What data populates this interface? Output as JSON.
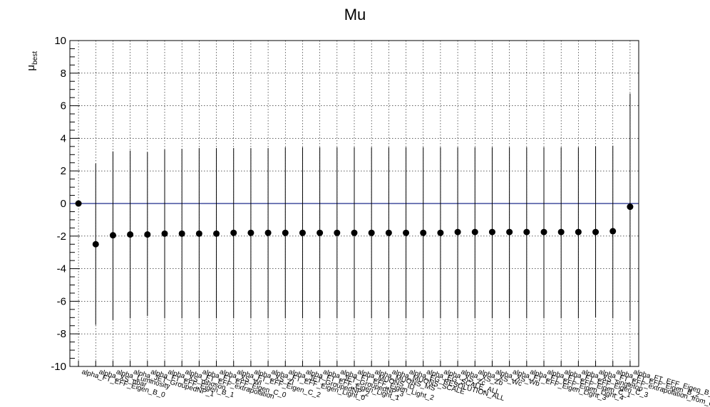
{
  "chart_data": {
    "type": "scatter",
    "title": "Mu",
    "ylabel_main": "μ",
    "ylabel_sub": "best",
    "xlabel": "",
    "ylim": [
      -10,
      10
    ],
    "yticks": [
      -10,
      -8,
      -6,
      -4,
      -2,
      0,
      2,
      4,
      6,
      8,
      10
    ],
    "grid": true,
    "reference_line": 0,
    "series": [
      {
        "marker": "filled-circle",
        "categories": [
          "alpha_FT_EFF_Eigen_B_0",
          "alpha_XS_ttbar",
          "alpha_Luminosity",
          "alpha_JET_GroupedNP_1",
          "alpha_FT_EFF_Eigen_B_1",
          "alpha_XS_diboson",
          "alpha_FT_EFF_extrapolation",
          "alpha_FT_EFF_Eigen_C_0",
          "alpha_XS_Wl",
          "alpha_FT_EFF_Eigen_C_2",
          "alpha_XS_Zl",
          "alpha_FT_EFF_Eigen_Light_0",
          "alpha_JET_GroupedNP_2",
          "alpha_FT_EFF_Eigen_Light_1",
          "alpha_JET_GroupedNP_3",
          "alpha_FT_EFF_Eigen_Light_2",
          "alpha_MUONS_ID",
          "alpha_MUONS_MS",
          "alpha_MUONS_SCALE",
          "alpha_EG_RESOLUTION_ALL",
          "alpha_EG_SCALE_ALL",
          "alpha_XS_Zc",
          "alpha_XS_Zb",
          "alpha_XS_Wc",
          "alpha_XS_Wb",
          "alpha_FT_EFF_Eigen_Light_3",
          "alpha_FT_EFF_Eigen_Light_4",
          "alpha_FT_EFF_Eigen_C_1",
          "alpha_FT_EFF_Eigen_C_3",
          "alpha_XS_singletop",
          "alpha_FT_EFF_extrapolation_from_charm",
          "alpha_FT_EFF_Eigen_B_2",
          "alpha_FT_EFF_Eigen_B_3"
        ],
        "y": [
          0.0,
          -2.5,
          -1.95,
          -1.9,
          -1.9,
          -1.85,
          -1.85,
          -1.85,
          -1.85,
          -1.8,
          -1.8,
          -1.8,
          -1.8,
          -1.8,
          -1.8,
          -1.8,
          -1.8,
          -1.8,
          -1.8,
          -1.8,
          -1.8,
          -1.8,
          -1.75,
          -1.75,
          -1.75,
          -1.75,
          -1.75,
          -1.75,
          -1.75,
          -1.75,
          -1.75,
          -1.7,
          -0.2
        ],
        "y_low": [
          0.0,
          -7.45,
          -7.15,
          -7.05,
          -6.9,
          -7.05,
          -7.05,
          -7.05,
          -7.05,
          -7.05,
          -7.05,
          -7.05,
          -7.05,
          -7.05,
          -7.05,
          -7.05,
          -7.05,
          -7.05,
          -7.05,
          -7.05,
          -7.05,
          -7.05,
          -7.05,
          -7.05,
          -7.05,
          -7.05,
          -7.05,
          -7.05,
          -7.05,
          -7.05,
          -7.0,
          -7.05,
          -7.2
        ],
        "y_high": [
          0.0,
          2.45,
          3.2,
          3.25,
          3.15,
          3.3,
          3.35,
          3.4,
          3.4,
          3.4,
          3.4,
          3.4,
          3.45,
          3.45,
          3.45,
          3.45,
          3.45,
          3.45,
          3.45,
          3.45,
          3.45,
          3.45,
          3.45,
          3.45,
          3.45,
          3.45,
          3.45,
          3.45,
          3.45,
          3.45,
          3.5,
          3.55,
          6.75
        ]
      }
    ]
  }
}
